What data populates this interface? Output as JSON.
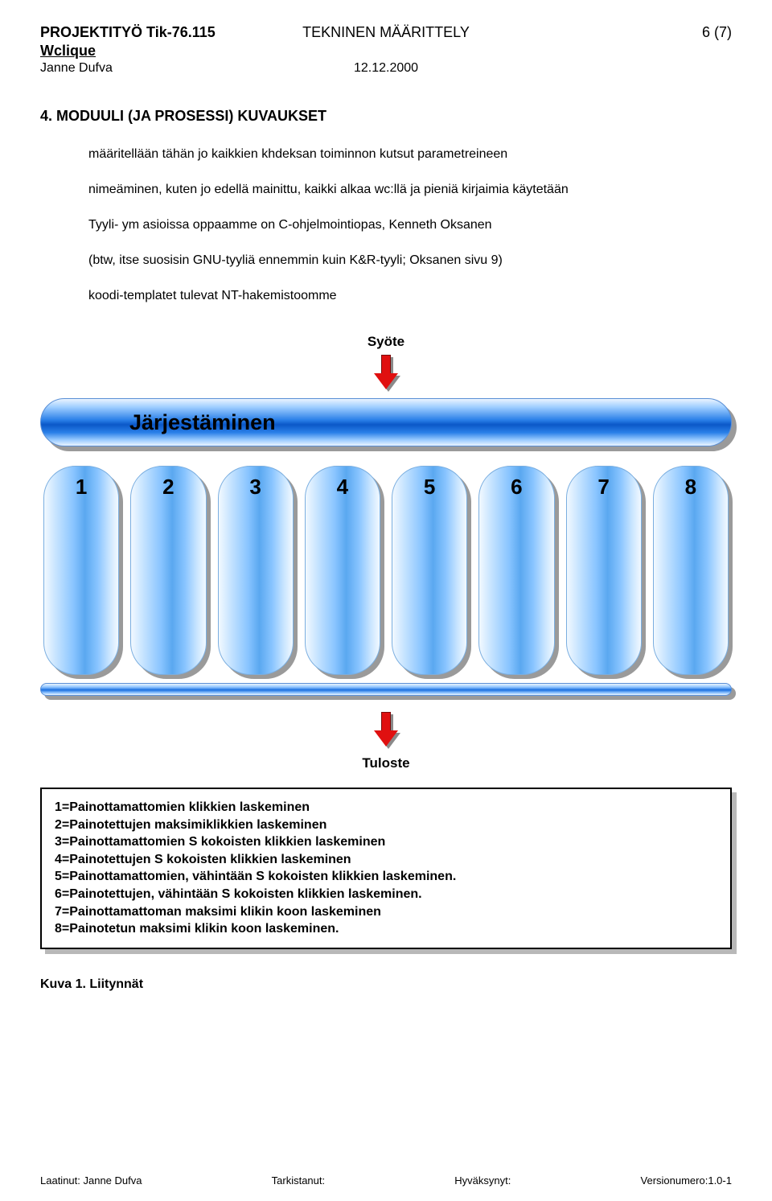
{
  "header": {
    "project": "PROJEKTITYÖ Tik-76.115",
    "doc_type": "TEKNINEN MÄÄRITTELY",
    "page_number": "6 (7)",
    "subtitle": "Wclique",
    "author": "Janne Dufva",
    "date": "12.12.2000"
  },
  "section": {
    "title": "4. MODUULI (JA PROSESSI) KUVAUKSET",
    "para1": "määritellään tähän jo kaikkien khdeksan toiminnon kutsut parametreineen",
    "para2": "nimeäminen, kuten jo edellä mainittu, kaikki alkaa wc:llä ja pieniä kirjaimia käytetään",
    "para3": "Tyyli- ym asioissa oppaamme on C-ohjelmointiopas, Kenneth Oksanen",
    "para4": "(btw, itse suosisin GNU-tyyliä ennemmin kuin K&R-tyyli; Oksanen sivu 9)",
    "para5": "koodi-templatet tulevat NT-hakemistoomme"
  },
  "diagram": {
    "input_label": "Syöte",
    "main_label": "Järjestäminen",
    "columns": [
      "1",
      "2",
      "3",
      "4",
      "5",
      "6",
      "7",
      "8"
    ],
    "output_label": "Tuloste",
    "colors": {
      "arrow_fill": "#e01010",
      "pill_gradient_mid": "#0b57c8",
      "column_gradient_mid": "#5aa8f0",
      "shadow": "#9a9a9a"
    }
  },
  "legend": {
    "l1": "1=Painottamattomien klikkien laskeminen",
    "l2": "2=Painotettujen maksimiklikkien laskeminen",
    "l3": "3=Painottamattomien S kokoisten klikkien laskeminen",
    "l4": "4=Painotettujen S kokoisten klikkien laskeminen",
    "l5": "5=Painottamattomien, vähintään S kokoisten klikkien laskeminen.",
    "l6": "6=Painotettujen, vähintään S kokoisten klikkien laskeminen.",
    "l7": "7=Painottamattoman maksimi klikin koon laskeminen",
    "l8": "8=Painotetun maksimi klikin koon laskeminen."
  },
  "figure_caption": "Kuva 1. Liitynnät",
  "footer": {
    "f1": "Laatinut: Janne Dufva",
    "f2": "Tarkistanut:",
    "f3": "Hyväksynyt:",
    "f4": "Versionumero:1.0-1"
  }
}
